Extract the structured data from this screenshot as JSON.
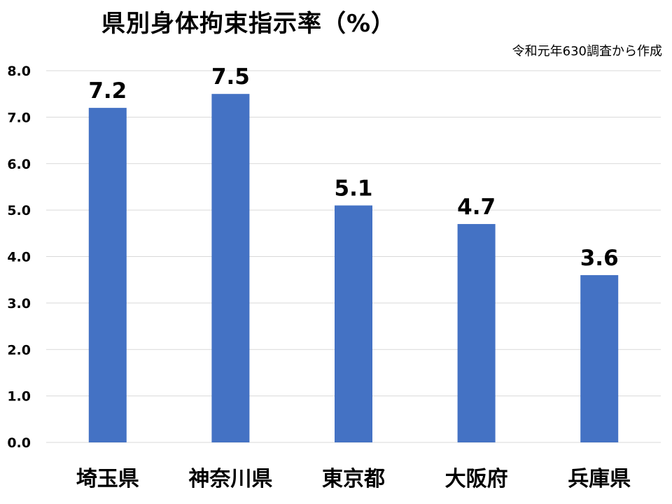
{
  "chart_data": {
    "type": "bar",
    "title": "県別身体拘束指示率（%）",
    "subtitle": "令和元年630調査から作成",
    "categories": [
      "埼玉県",
      "神奈川県",
      "東京都",
      "大阪府",
      "兵庫県"
    ],
    "values": [
      7.2,
      7.5,
      5.1,
      4.7,
      3.6
    ],
    "data_labels": [
      "7.2",
      "7.5",
      "5.1",
      "4.7",
      "3.6"
    ],
    "ylim": [
      0,
      8
    ],
    "yticks": [
      "0.0",
      "1.0",
      "2.0",
      "3.0",
      "4.0",
      "5.0",
      "6.0",
      "7.0",
      "8.0"
    ],
    "xlabel": "",
    "ylabel": "",
    "grid": true,
    "legend": "none",
    "bar_color": "#4472C4",
    "grid_color": "#D9D9D9"
  }
}
